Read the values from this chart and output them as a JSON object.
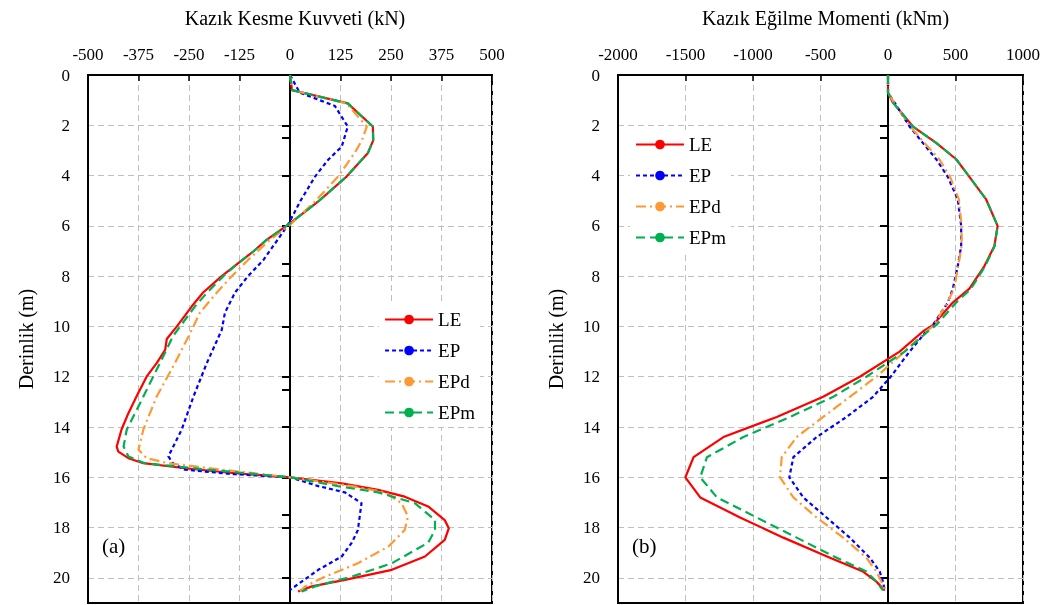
{
  "chart_data": [
    {
      "type": "line",
      "title": "Kazık Kesme Kuvveti (kN)",
      "ylabel": "Derinlik (m)",
      "annotations": [
        "(a)"
      ],
      "xlim": [
        -500,
        500
      ],
      "xticks": [
        -500,
        -375,
        -250,
        -125,
        0,
        125,
        250,
        375,
        500
      ],
      "ylim": [
        21,
        0
      ],
      "yticks": [
        0,
        2,
        4,
        6,
        8,
        10,
        12,
        14,
        16,
        18,
        20
      ],
      "grid": true,
      "legend": "right",
      "marker": "none",
      "series": [
        {
          "name": "LE",
          "color": "#ff0000",
          "line_style": "solid",
          "x": [
            0,
            5,
            143,
            205,
            206,
            193,
            140,
            70,
            0,
            -58,
            -91,
            -128,
            -169,
            -215,
            -243,
            -280,
            -305,
            -309,
            -330,
            -355,
            -380,
            -400,
            -417,
            -429,
            -425,
            -400,
            -363,
            -260,
            -136,
            0,
            128,
            218,
            284,
            342,
            383,
            393,
            383,
            334,
            252,
            136,
            54,
            20
          ],
          "values": [
            0,
            0.6,
            1.13,
            2.05,
            2.6,
            3.1,
            4.04,
            5.03,
            5.9,
            6.56,
            7.02,
            7.48,
            8.0,
            8.65,
            9.2,
            10.0,
            10.5,
            10.93,
            11.46,
            12.0,
            12.79,
            13.45,
            14.1,
            14.78,
            14.98,
            15.24,
            15.44,
            15.64,
            15.84,
            16.0,
            16.24,
            16.5,
            16.77,
            17.16,
            17.7,
            18.03,
            18.49,
            19.15,
            19.68,
            20.08,
            20.34,
            20.54
          ]
        },
        {
          "name": "EP",
          "color": "#0000ff",
          "line_style": "dotted",
          "x": [
            0,
            24,
            111,
            143,
            128,
            94,
            62,
            25,
            -5,
            -37,
            -66,
            -104,
            -136,
            -161,
            -169,
            -206,
            -239,
            -268,
            -301,
            -290,
            -260,
            -136,
            0,
            70,
            136,
            177,
            168,
            153,
            128,
            70,
            29,
            0
          ],
          "values": [
            0,
            0.7,
            1.23,
            2.05,
            2.85,
            3.38,
            4.04,
            5.03,
            5.96,
            6.7,
            7.36,
            8.0,
            8.65,
            9.45,
            10.14,
            11.46,
            12.79,
            14.1,
            15.17,
            15.44,
            15.7,
            15.88,
            16.0,
            16.35,
            16.6,
            17.03,
            18.1,
            18.6,
            19.15,
            19.68,
            20.15,
            20.48
          ]
        },
        {
          "name": "EPd",
          "color": "#ff9933",
          "line_style": "dashdot",
          "x": [
            0,
            5,
            140,
            190,
            178,
            160,
            119,
            62,
            0,
            -50,
            -104,
            -144,
            -181,
            -223,
            -243,
            -285,
            -330,
            -363,
            -375,
            -355,
            -301,
            -161,
            0,
            153,
            235,
            276,
            292,
            284,
            243,
            168,
            87,
            37,
            25
          ],
          "values": [
            0,
            0.6,
            1.13,
            2.05,
            2.6,
            3.1,
            4.04,
            5.03,
            5.96,
            6.56,
            7.36,
            8.0,
            8.65,
            9.45,
            10.14,
            11.46,
            12.79,
            14.1,
            14.9,
            15.24,
            15.44,
            15.71,
            16.0,
            16.35,
            16.6,
            17.03,
            17.56,
            18.1,
            18.76,
            19.42,
            19.95,
            20.34,
            20.54
          ]
        },
        {
          "name": "EPm",
          "color": "#00b050",
          "line_style": "dashed",
          "x": [
            0,
            5,
            143,
            205,
            206,
            193,
            140,
            70,
            0,
            -58,
            -91,
            -128,
            -165,
            -205,
            -235,
            -289,
            -322,
            -363,
            -404,
            -412,
            -400,
            -360,
            -200,
            0,
            119,
            218,
            309,
            359,
            359,
            342,
            252,
            153,
            62,
            29
          ],
          "values": [
            0,
            0.6,
            1.13,
            2.05,
            2.6,
            3.1,
            4.04,
            5.03,
            5.9,
            6.56,
            7.02,
            7.48,
            8.0,
            8.65,
            9.2,
            10.37,
            11.46,
            12.79,
            14.1,
            14.78,
            15.17,
            15.44,
            15.7,
            16.0,
            16.35,
            16.6,
            17.03,
            17.7,
            18.1,
            18.6,
            19.42,
            19.95,
            20.34,
            20.54
          ]
        }
      ]
    },
    {
      "type": "line",
      "title": "Kazık Eğilme Momenti (kNm)",
      "ylabel": "Derinlik (m)",
      "annotations": [
        "(b)"
      ],
      "xlim": [
        -2000,
        1000
      ],
      "xticks": [
        -2000,
        -1500,
        -1000,
        -500,
        0,
        500,
        1000
      ],
      "ylim": [
        21,
        0
      ],
      "yticks": [
        0,
        2,
        4,
        6,
        8,
        10,
        12,
        14,
        16,
        18,
        20
      ],
      "grid": true,
      "legend": "top left",
      "marker": "none",
      "series": [
        {
          "name": "LE",
          "color": "#ff0000",
          "line_style": "solid",
          "x": [
            0,
            0,
            37,
            185,
            357,
            505,
            603,
            727,
            812,
            788,
            714,
            603,
            480,
            332,
            258,
            86,
            -209,
            -480,
            -824,
            -1219,
            -1440,
            -1501,
            -1391,
            -1096,
            -775,
            -430,
            -185,
            -86,
            -24
          ],
          "values": [
            0,
            0.7,
            1.1,
            2.05,
            2.7,
            3.35,
            4.05,
            4.95,
            6,
            6.8,
            7.6,
            8.5,
            9.05,
            9.95,
            10.2,
            11,
            12,
            12.8,
            13.6,
            14.4,
            15.2,
            16,
            16.8,
            17.6,
            18.4,
            19.2,
            19.75,
            20.15,
            20.5
          ]
        },
        {
          "name": "EP",
          "color": "#0000ff",
          "line_style": "dotted",
          "x": [
            0,
            0,
            49,
            160,
            258,
            357,
            443,
            517,
            542,
            542,
            517,
            480,
            443,
            332,
            283,
            160,
            20,
            -111,
            -307,
            -529,
            -701,
            -731,
            -628,
            -455,
            -283,
            -135,
            -61,
            -37,
            -24
          ],
          "values": [
            0,
            0.7,
            1.1,
            2.05,
            2.7,
            3.35,
            4.05,
            4.95,
            6,
            6.8,
            7.6,
            8.5,
            9.05,
            9.95,
            10.2,
            11,
            12,
            12.8,
            13.6,
            14.4,
            15.2,
            16,
            16.8,
            17.6,
            18.4,
            19.2,
            19.75,
            20.15,
            20.5
          ]
        },
        {
          "name": "EPd",
          "color": "#ff9933",
          "line_style": "dashdot",
          "x": [
            0,
            0,
            45,
            165,
            270,
            380,
            460,
            525,
            545,
            545,
            520,
            490,
            440,
            340,
            283,
            123,
            -86,
            -283,
            -480,
            -677,
            -787,
            -800,
            -701,
            -529,
            -332,
            -160,
            -86,
            -49,
            -24
          ],
          "values": [
            0,
            0.7,
            1.1,
            2.05,
            2.7,
            3.35,
            4.05,
            4.95,
            6,
            6.8,
            7.6,
            8.5,
            9.05,
            9.95,
            10.2,
            11,
            12,
            12.8,
            13.6,
            14.4,
            15.2,
            16,
            16.8,
            17.6,
            18.4,
            19.2,
            19.75,
            20.15,
            20.5
          ]
        },
        {
          "name": "EPm",
          "color": "#00b050",
          "line_style": "dashed",
          "x": [
            0,
            0,
            37,
            185,
            357,
            505,
            603,
            727,
            812,
            790,
            720,
            615,
            505,
            357,
            296,
            123,
            -160,
            -406,
            -726,
            -1071,
            -1341,
            -1391,
            -1267,
            -972,
            -677,
            -381,
            -160,
            -86,
            -37
          ],
          "values": [
            0,
            0.7,
            1.1,
            2.05,
            2.7,
            3.35,
            4.05,
            4.95,
            6,
            6.8,
            7.6,
            8.5,
            9.05,
            9.95,
            10.2,
            11,
            12,
            12.8,
            13.6,
            14.4,
            15.2,
            16,
            16.8,
            17.6,
            18.4,
            19.2,
            19.75,
            20.15,
            20.5
          ]
        }
      ]
    }
  ]
}
